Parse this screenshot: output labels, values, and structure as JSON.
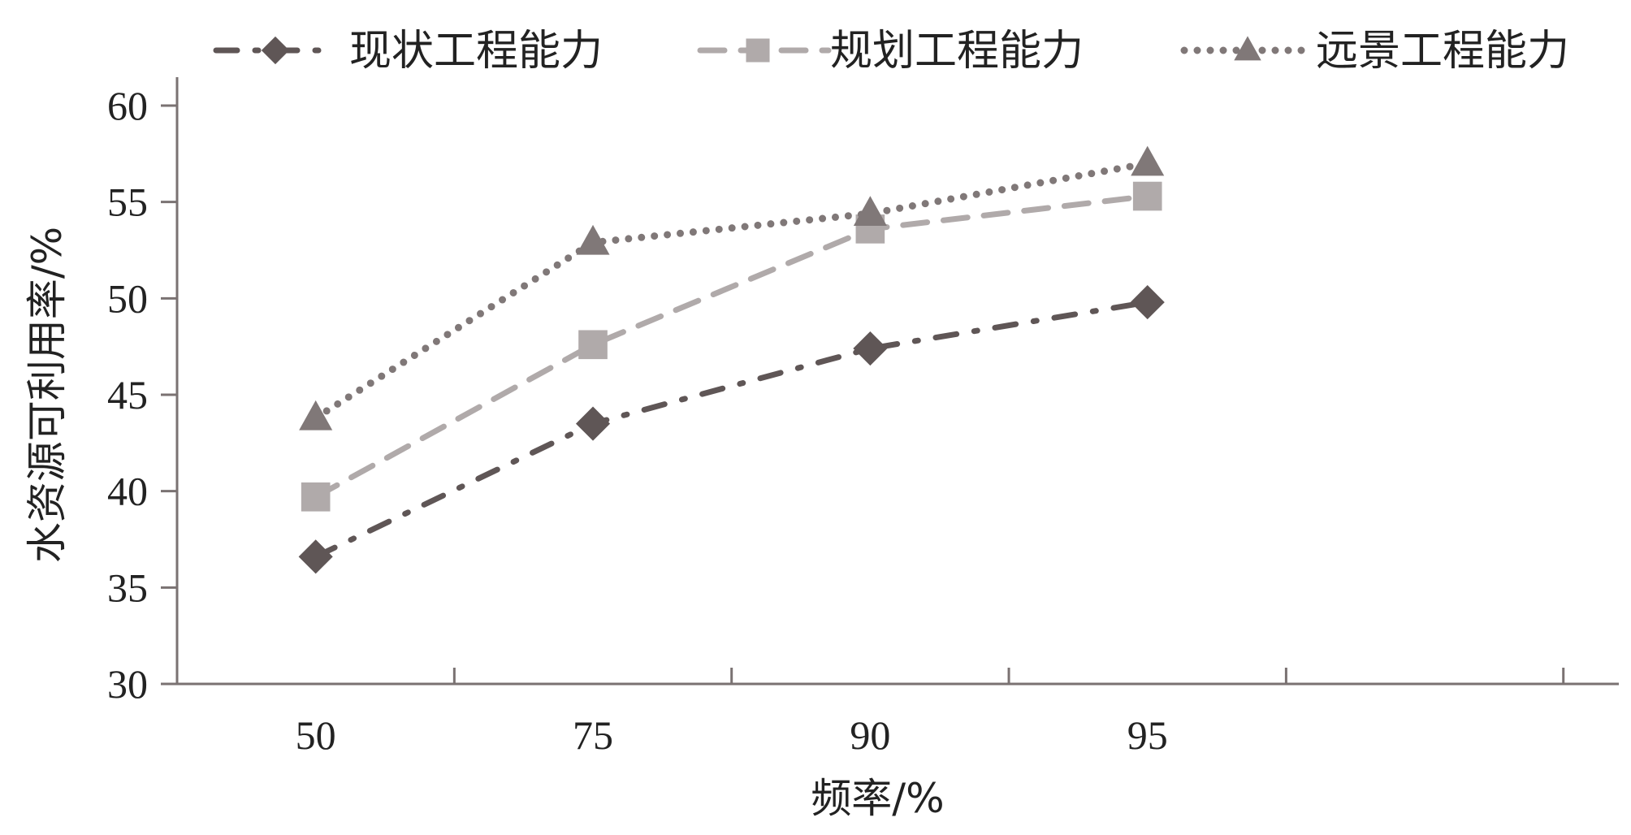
{
  "chart_data": {
    "type": "line",
    "title": "",
    "xlabel": "频率/%",
    "ylabel": "水资源可利用率/%",
    "categories": [
      "50",
      "75",
      "90",
      "95"
    ],
    "ylim": [
      30,
      60
    ],
    "yticks": [
      "30",
      "35",
      "40",
      "45",
      "50",
      "55",
      "60"
    ],
    "grid": false,
    "legend_position": "top",
    "series": [
      {
        "name": "现状工程能力",
        "values": [
          36.6,
          43.5,
          47.4,
          49.8
        ],
        "color": "#5f5656",
        "marker": "diamond",
        "line_style": "dash-dot"
      },
      {
        "name": "规划工程能力",
        "values": [
          39.7,
          47.6,
          53.6,
          55.3
        ],
        "color": "#b0aaaa",
        "marker": "square",
        "line_style": "dashed"
      },
      {
        "name": "远景工程能力",
        "values": [
          43.8,
          52.9,
          54.4,
          57.0
        ],
        "color": "#807878",
        "marker": "triangle",
        "line_style": "dotted"
      }
    ]
  }
}
